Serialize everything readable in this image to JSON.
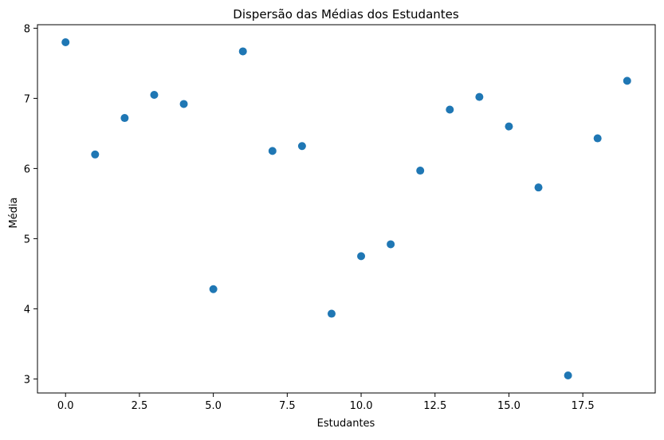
{
  "chart_data": {
    "type": "scatter",
    "title": "Dispersão das Médias dos Estudantes",
    "xlabel": "Estudantes",
    "ylabel": "Média",
    "xlim": [
      -0.95,
      19.95
    ],
    "ylim": [
      2.8,
      8.05
    ],
    "xticks": [
      0.0,
      2.5,
      5.0,
      7.5,
      10.0,
      12.5,
      15.0,
      17.5
    ],
    "xtick_labels": [
      "0.0",
      "2.5",
      "5.0",
      "7.5",
      "10.0",
      "12.5",
      "15.0",
      "17.5"
    ],
    "yticks": [
      3,
      4,
      5,
      6,
      7,
      8
    ],
    "ytick_labels": [
      "3",
      "4",
      "5",
      "6",
      "7",
      "8"
    ],
    "grid": false,
    "marker_color": "#1f77b4",
    "x": [
      0,
      1,
      2,
      3,
      4,
      5,
      6,
      7,
      8,
      9,
      10,
      11,
      12,
      13,
      14,
      15,
      16,
      17,
      18,
      19
    ],
    "y": [
      7.8,
      6.2,
      6.72,
      7.05,
      6.92,
      4.28,
      7.67,
      6.25,
      6.32,
      3.93,
      4.75,
      4.92,
      5.97,
      6.84,
      7.02,
      6.6,
      5.73,
      3.05,
      6.43,
      7.25
    ]
  }
}
